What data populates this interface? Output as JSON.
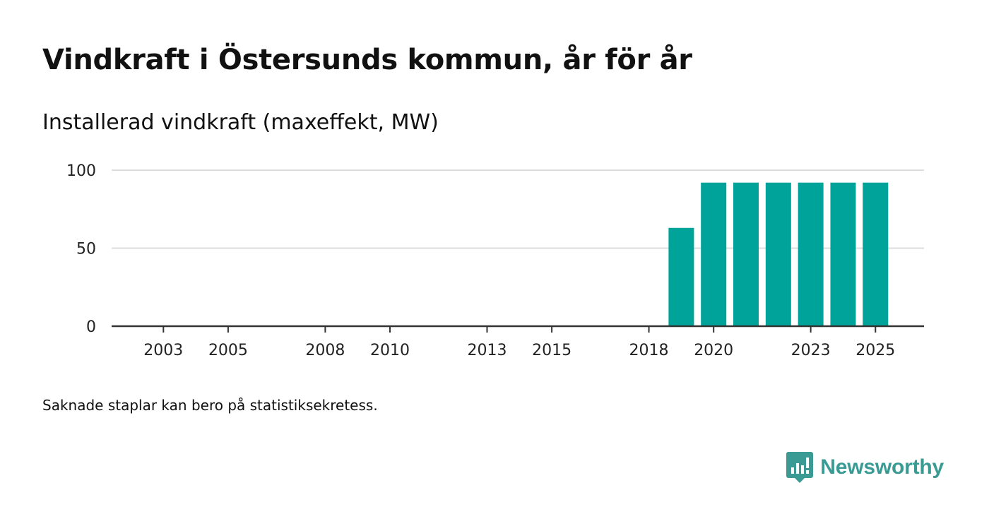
{
  "title": "Vindkraft i Östersunds kommun, år för år",
  "subtitle": "Installerad vindkraft (maxeffekt, MW)",
  "footnote": "Saknade staplar kan bero på statistiksekretess.",
  "brand": {
    "name": "Newsworthy",
    "logo_icon": "newsworthy-logo-icon",
    "color": "#3a9a94"
  },
  "colors": {
    "bar": "#00a39a",
    "grid": "#dddddd",
    "axis": "#333333"
  },
  "chart_data": {
    "type": "bar",
    "title": "Vindkraft i Östersunds kommun, år för år",
    "ylabel": "Installerad vindkraft (maxeffekt, MW)",
    "xlabel": "",
    "categories": [
      "2003",
      "2004",
      "2005",
      "2006",
      "2007",
      "2008",
      "2009",
      "2010",
      "2011",
      "2012",
      "2013",
      "2014",
      "2015",
      "2016",
      "2017",
      "2018",
      "2019",
      "2020",
      "2021",
      "2022",
      "2023",
      "2024",
      "2025"
    ],
    "values": [
      0,
      0,
      0,
      0,
      0,
      0,
      0,
      0,
      0,
      0,
      0,
      0,
      0,
      0,
      0,
      0,
      63,
      92,
      92,
      92,
      92,
      92,
      92
    ],
    "xticks": [
      "2003",
      "2005",
      "2008",
      "2010",
      "2013",
      "2015",
      "2018",
      "2020",
      "2023",
      "2025"
    ],
    "yticks": [
      0,
      50,
      100
    ],
    "ylim": [
      0,
      100
    ],
    "xlim": [
      2001.4,
      2026.5
    ],
    "grid": true
  }
}
